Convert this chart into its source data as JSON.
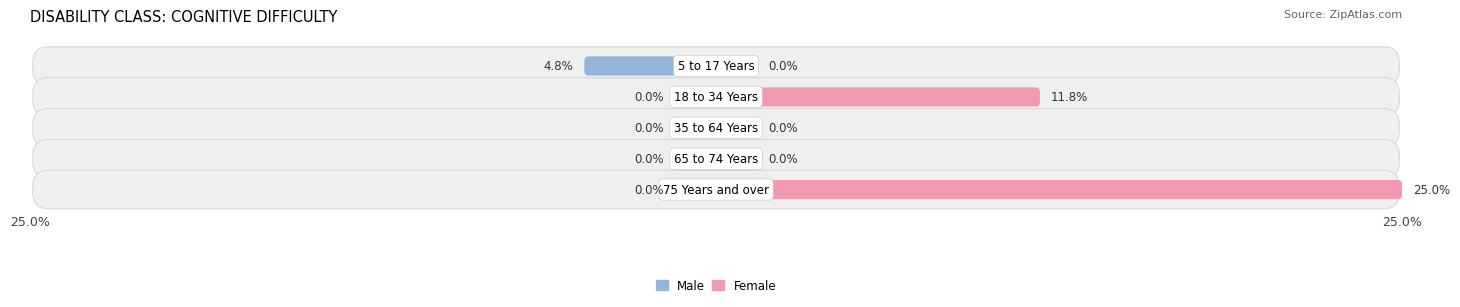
{
  "title": "DISABILITY CLASS: COGNITIVE DIFFICULTY",
  "source": "Source: ZipAtlas.com",
  "categories": [
    "5 to 17 Years",
    "18 to 34 Years",
    "35 to 64 Years",
    "65 to 74 Years",
    "75 Years and over"
  ],
  "male_values": [
    4.8,
    0.0,
    0.0,
    0.0,
    0.0
  ],
  "female_values": [
    0.0,
    11.8,
    0.0,
    0.0,
    25.0
  ],
  "male_color": "#93b5d8",
  "female_color": "#f09ab2",
  "row_bg_color": "#efefef",
  "row_edge_color": "#d8d8d8",
  "xlim": 25.0,
  "min_bar_val": 1.5,
  "title_fontsize": 10.5,
  "label_fontsize": 8.5,
  "value_fontsize": 8.5,
  "tick_fontsize": 9,
  "source_fontsize": 8
}
